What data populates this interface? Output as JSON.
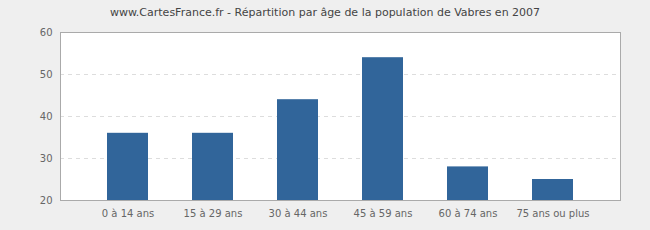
{
  "chart_data": {
    "type": "bar",
    "title": "www.CartesFrance.fr - Répartition par âge de la population de Vabres en 2007",
    "categories": [
      "0 à 14 ans",
      "15 à 29 ans",
      "30 à 44 ans",
      "45 à 59 ans",
      "60 à 74 ans",
      "75 ans ou plus"
    ],
    "values": [
      36,
      36,
      44,
      54,
      28,
      25
    ],
    "color": "#31659a",
    "ylim": [
      20,
      60
    ],
    "yticks": [
      20,
      30,
      40,
      50,
      60
    ],
    "grid": true
  }
}
